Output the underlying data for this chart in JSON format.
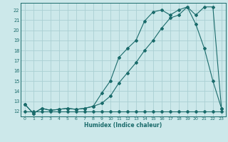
{
  "xlabel": "Humidex (Indice chaleur)",
  "bg_color": "#cce8ea",
  "grid_color": "#aad0d3",
  "line_color": "#1a6b6b",
  "xlim": [
    -0.5,
    23.5
  ],
  "ylim": [
    11.5,
    22.7
  ],
  "yticks": [
    12,
    13,
    14,
    15,
    16,
    17,
    18,
    19,
    20,
    21,
    22
  ],
  "xticks": [
    0,
    1,
    2,
    3,
    4,
    5,
    6,
    7,
    8,
    9,
    10,
    11,
    12,
    13,
    14,
    15,
    16,
    17,
    18,
    19,
    20,
    21,
    22,
    23
  ],
  "curve_flat_x": [
    0,
    1,
    2,
    3,
    4,
    5,
    6,
    7,
    8,
    9,
    10,
    11,
    12,
    13,
    14,
    15,
    16,
    17,
    18,
    19,
    20,
    21,
    22,
    23
  ],
  "curve_flat_y": [
    12.0,
    12.0,
    12.0,
    12.0,
    12.0,
    12.0,
    12.0,
    12.0,
    12.0,
    12.0,
    12.0,
    12.0,
    12.0,
    12.0,
    12.0,
    12.0,
    12.0,
    12.0,
    12.0,
    12.0,
    12.0,
    12.0,
    12.0,
    12.0
  ],
  "curve_mid_x": [
    0,
    1,
    2,
    3,
    4,
    5,
    6,
    7,
    8,
    9,
    10,
    11,
    12,
    13,
    14,
    15,
    16,
    17,
    18,
    19,
    20,
    21,
    22,
    23
  ],
  "curve_mid_y": [
    12.7,
    11.8,
    12.3,
    12.1,
    12.2,
    12.3,
    12.2,
    12.3,
    12.5,
    12.8,
    13.5,
    14.8,
    15.8,
    16.8,
    18.0,
    19.0,
    20.2,
    21.2,
    21.5,
    22.3,
    20.6,
    18.2,
    15.0,
    12.3
  ],
  "curve_top_x": [
    0,
    1,
    2,
    3,
    4,
    5,
    6,
    7,
    8,
    9,
    10,
    11,
    12,
    13,
    14,
    15,
    16,
    17,
    18,
    19,
    20,
    21,
    22,
    23
  ],
  "curve_top_y": [
    12.7,
    11.8,
    12.3,
    12.1,
    12.2,
    12.3,
    12.2,
    12.3,
    12.5,
    13.8,
    15.0,
    17.3,
    18.2,
    19.0,
    20.9,
    21.8,
    22.0,
    21.5,
    22.0,
    22.3,
    21.5,
    22.3,
    22.3,
    12.3
  ]
}
